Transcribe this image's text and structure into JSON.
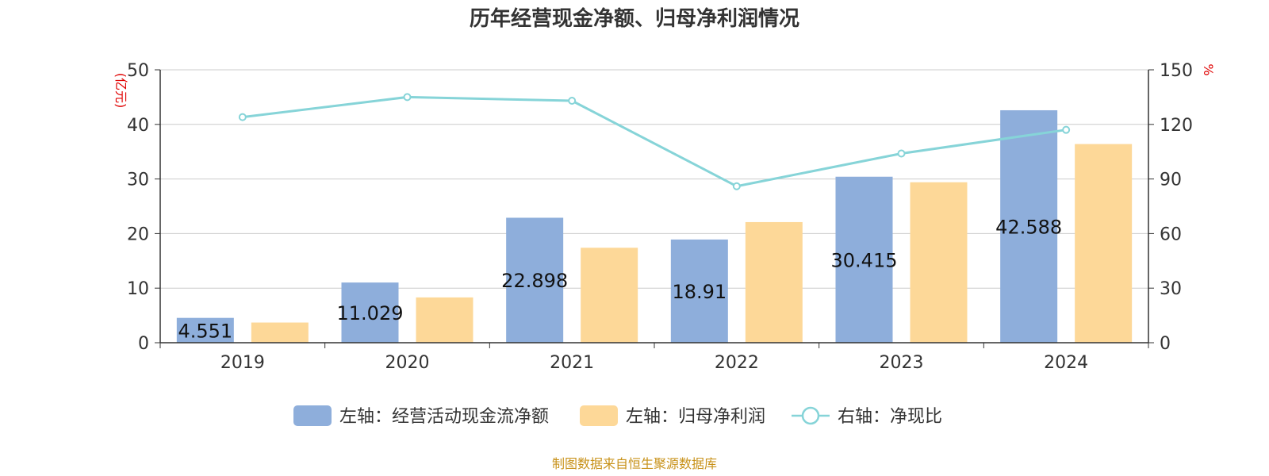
{
  "chart_data": {
    "type": "bar",
    "title": "历年经营现金净额、归母净利润情况",
    "categories": [
      "2019",
      "2020",
      "2021",
      "2022",
      "2023",
      "2024"
    ],
    "left_axis": {
      "unit": "(亿元)",
      "min": 0,
      "max": 50,
      "ticks": [
        "0",
        "10",
        "20",
        "30",
        "40",
        "50"
      ]
    },
    "right_axis": {
      "unit": "%",
      "min": 0,
      "max": 150,
      "ticks": [
        "0",
        "30",
        "60",
        "90",
        "120",
        "150"
      ]
    },
    "series": [
      {
        "name": "左轴：经营活动现金流净额",
        "type": "bar",
        "axis": "left",
        "color": "#8eaedb",
        "values": [
          4.551,
          11.029,
          22.898,
          18.91,
          30.415,
          42.588
        ],
        "labels": [
          "4.551",
          "11.029",
          "22.898",
          "18.91",
          "30.415",
          "42.588"
        ]
      },
      {
        "name": "左轴：归母净利润",
        "type": "bar",
        "axis": "left",
        "color": "#fdd898",
        "values": [
          3.7,
          8.3,
          17.4,
          22.1,
          29.4,
          36.4
        ]
      },
      {
        "name": "右轴：净现比",
        "type": "line",
        "axis": "right",
        "color": "#86d4d8",
        "values": [
          124,
          135,
          133,
          86,
          104,
          117
        ]
      }
    ],
    "grid": true,
    "legend": "bottom-center"
  },
  "source": "制图数据来自恒生聚源数据库"
}
